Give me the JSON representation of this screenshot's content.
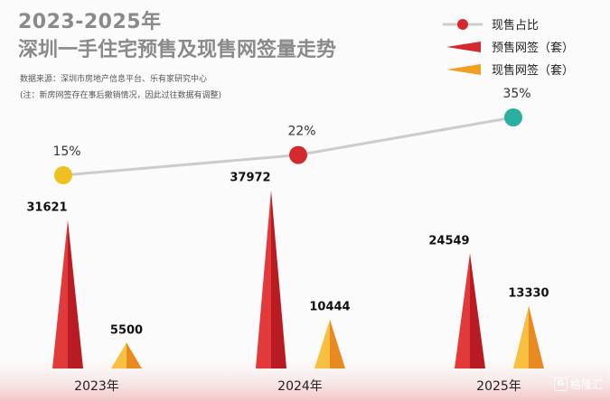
{
  "header": {
    "title_line1": "2023-2025年",
    "title_line2": "深圳一手住宅预售及现售网签量走势",
    "source": "数据来源：深圳市房地产信息平台、乐有家研究中心",
    "note": "(注：新房网签存在事后撤销情况，因此过往数据有调整)"
  },
  "legend": {
    "items": [
      {
        "label": "现售占比",
        "color": "#d42a2e"
      },
      {
        "label": "预售网签（套）",
        "color": "#d42a2e"
      },
      {
        "label": "现售网签（套）",
        "color": "#f0a020"
      }
    ]
  },
  "watermark": {
    "text": "格隆汇",
    "icon_letter": "G"
  },
  "chart_data": {
    "type": "bar",
    "categories": [
      "2023年",
      "2024年",
      "2025年"
    ],
    "series": [
      {
        "name": "预售网签（套）",
        "values": [
          31621,
          37972,
          24549
        ],
        "color": "#d42a2e"
      },
      {
        "name": "现售网签（套）",
        "values": [
          5500,
          10444,
          13330
        ],
        "color": "#f0a020"
      },
      {
        "name": "现售占比",
        "values": [
          15,
          22,
          35
        ],
        "value_labels": [
          "15%",
          "22%",
          "35%"
        ],
        "unit": "%",
        "type": "line",
        "point_colors": [
          "#f0c020",
          "#d42a2e",
          "#2ab0a0"
        ],
        "line_color": "#cccccc"
      }
    ]
  }
}
